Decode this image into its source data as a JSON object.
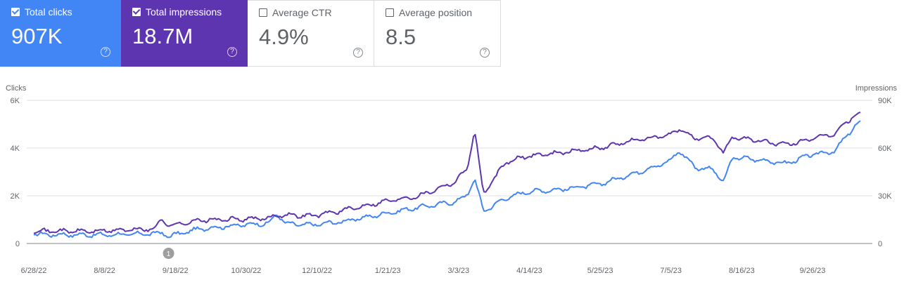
{
  "metrics": [
    {
      "id": "clicks",
      "label": "Total clicks",
      "value": "907K",
      "checked": true,
      "color": "#4285f4"
    },
    {
      "id": "impressions",
      "label": "Total impressions",
      "value": "18.7M",
      "checked": true,
      "color": "#5e35b1"
    },
    {
      "id": "ctr",
      "label": "Average CTR",
      "value": "4.9%",
      "checked": false
    },
    {
      "id": "position",
      "label": "Average position",
      "value": "8.5",
      "checked": false
    }
  ],
  "help_glyph": "?",
  "annotation_label": "1",
  "chart_data": {
    "type": "line",
    "left_axis": {
      "label": "Clicks",
      "ticks": [
        "0",
        "2K",
        "4K",
        "6K"
      ],
      "ylim": [
        0,
        6000
      ]
    },
    "right_axis": {
      "label": "Impressions",
      "ticks": [
        "0",
        "30K",
        "60K",
        "90K"
      ],
      "ylim": [
        0,
        90000
      ]
    },
    "x_tick_labels": [
      "6/28/22",
      "8/8/22",
      "9/18/22",
      "10/30/22",
      "12/10/22",
      "1/21/23",
      "3/3/23",
      "4/14/23",
      "5/25/23",
      "7/5/23",
      "8/16/23",
      "9/26/23"
    ],
    "x_range": [
      "2022-06-28",
      "2023-10-30"
    ],
    "annotation": {
      "date": "2022-09-18",
      "label": "1"
    },
    "grid": true,
    "series": [
      {
        "name": "Clicks",
        "axis": "left",
        "color": "#4285f4",
        "points": [
          [
            "2022-06-28",
            400
          ],
          [
            "2022-07-15",
            370
          ],
          [
            "2022-08-08",
            360
          ],
          [
            "2022-08-25",
            380
          ],
          [
            "2022-09-10",
            420
          ],
          [
            "2022-09-14",
            440
          ],
          [
            "2022-09-18",
            300
          ],
          [
            "2022-10-05",
            600
          ],
          [
            "2022-10-30",
            780
          ],
          [
            "2022-11-15",
            850
          ],
          [
            "2022-11-20",
            1250
          ],
          [
            "2022-11-25",
            820
          ],
          [
            "2022-12-10",
            780
          ],
          [
            "2022-12-28",
            920
          ],
          [
            "2023-01-21",
            1250
          ],
          [
            "2023-02-10",
            1520
          ],
          [
            "2023-03-03",
            1750
          ],
          [
            "2023-03-10",
            2050
          ],
          [
            "2023-03-14",
            2750
          ],
          [
            "2023-03-19",
            1350
          ],
          [
            "2023-04-01",
            1900
          ],
          [
            "2023-04-14",
            2180
          ],
          [
            "2023-05-01",
            2250
          ],
          [
            "2023-05-25",
            2480
          ],
          [
            "2023-06-15",
            2950
          ],
          [
            "2023-07-05",
            3450
          ],
          [
            "2023-07-10",
            3900
          ],
          [
            "2023-07-20",
            3180
          ],
          [
            "2023-07-30",
            3100
          ],
          [
            "2023-08-05",
            2550
          ],
          [
            "2023-08-10",
            3600
          ],
          [
            "2023-08-16",
            3580
          ],
          [
            "2023-08-26",
            3500
          ],
          [
            "2023-09-10",
            3350
          ],
          [
            "2023-09-26",
            3750
          ],
          [
            "2023-10-08",
            3850
          ],
          [
            "2023-10-20",
            4950
          ],
          [
            "2023-10-30",
            5200
          ]
        ]
      },
      {
        "name": "Impressions",
        "axis": "right",
        "color": "#5e35b1",
        "points": [
          [
            "2022-06-28",
            8200
          ],
          [
            "2022-07-15",
            7800
          ],
          [
            "2022-08-08",
            7800
          ],
          [
            "2022-08-25",
            8600
          ],
          [
            "2022-09-10",
            9100
          ],
          [
            "2022-09-14",
            16000
          ],
          [
            "2022-09-18",
            11000
          ],
          [
            "2022-10-05",
            14500
          ],
          [
            "2022-10-30",
            15300
          ],
          [
            "2022-11-15",
            15800
          ],
          [
            "2022-11-20",
            18000
          ],
          [
            "2022-12-10",
            17400
          ],
          [
            "2022-12-28",
            20800
          ],
          [
            "2023-01-21",
            26500
          ],
          [
            "2023-02-10",
            30000
          ],
          [
            "2023-03-03",
            39000
          ],
          [
            "2023-03-10",
            48000
          ],
          [
            "2023-03-14",
            72000
          ],
          [
            "2023-03-19",
            31000
          ],
          [
            "2023-04-01",
            51000
          ],
          [
            "2023-04-14",
            55000
          ],
          [
            "2023-05-01",
            57000
          ],
          [
            "2023-05-25",
            60000
          ],
          [
            "2023-06-15",
            65000
          ],
          [
            "2023-07-05",
            68000
          ],
          [
            "2023-07-10",
            72000
          ],
          [
            "2023-07-20",
            66000
          ],
          [
            "2023-07-30",
            66000
          ],
          [
            "2023-08-05",
            57000
          ],
          [
            "2023-08-10",
            67000
          ],
          [
            "2023-08-16",
            66000
          ],
          [
            "2023-08-26",
            64500
          ],
          [
            "2023-09-10",
            62000
          ],
          [
            "2023-09-26",
            66000
          ],
          [
            "2023-10-08",
            69000
          ],
          [
            "2023-10-20",
            81000
          ],
          [
            "2023-10-30",
            83000
          ]
        ]
      }
    ]
  }
}
